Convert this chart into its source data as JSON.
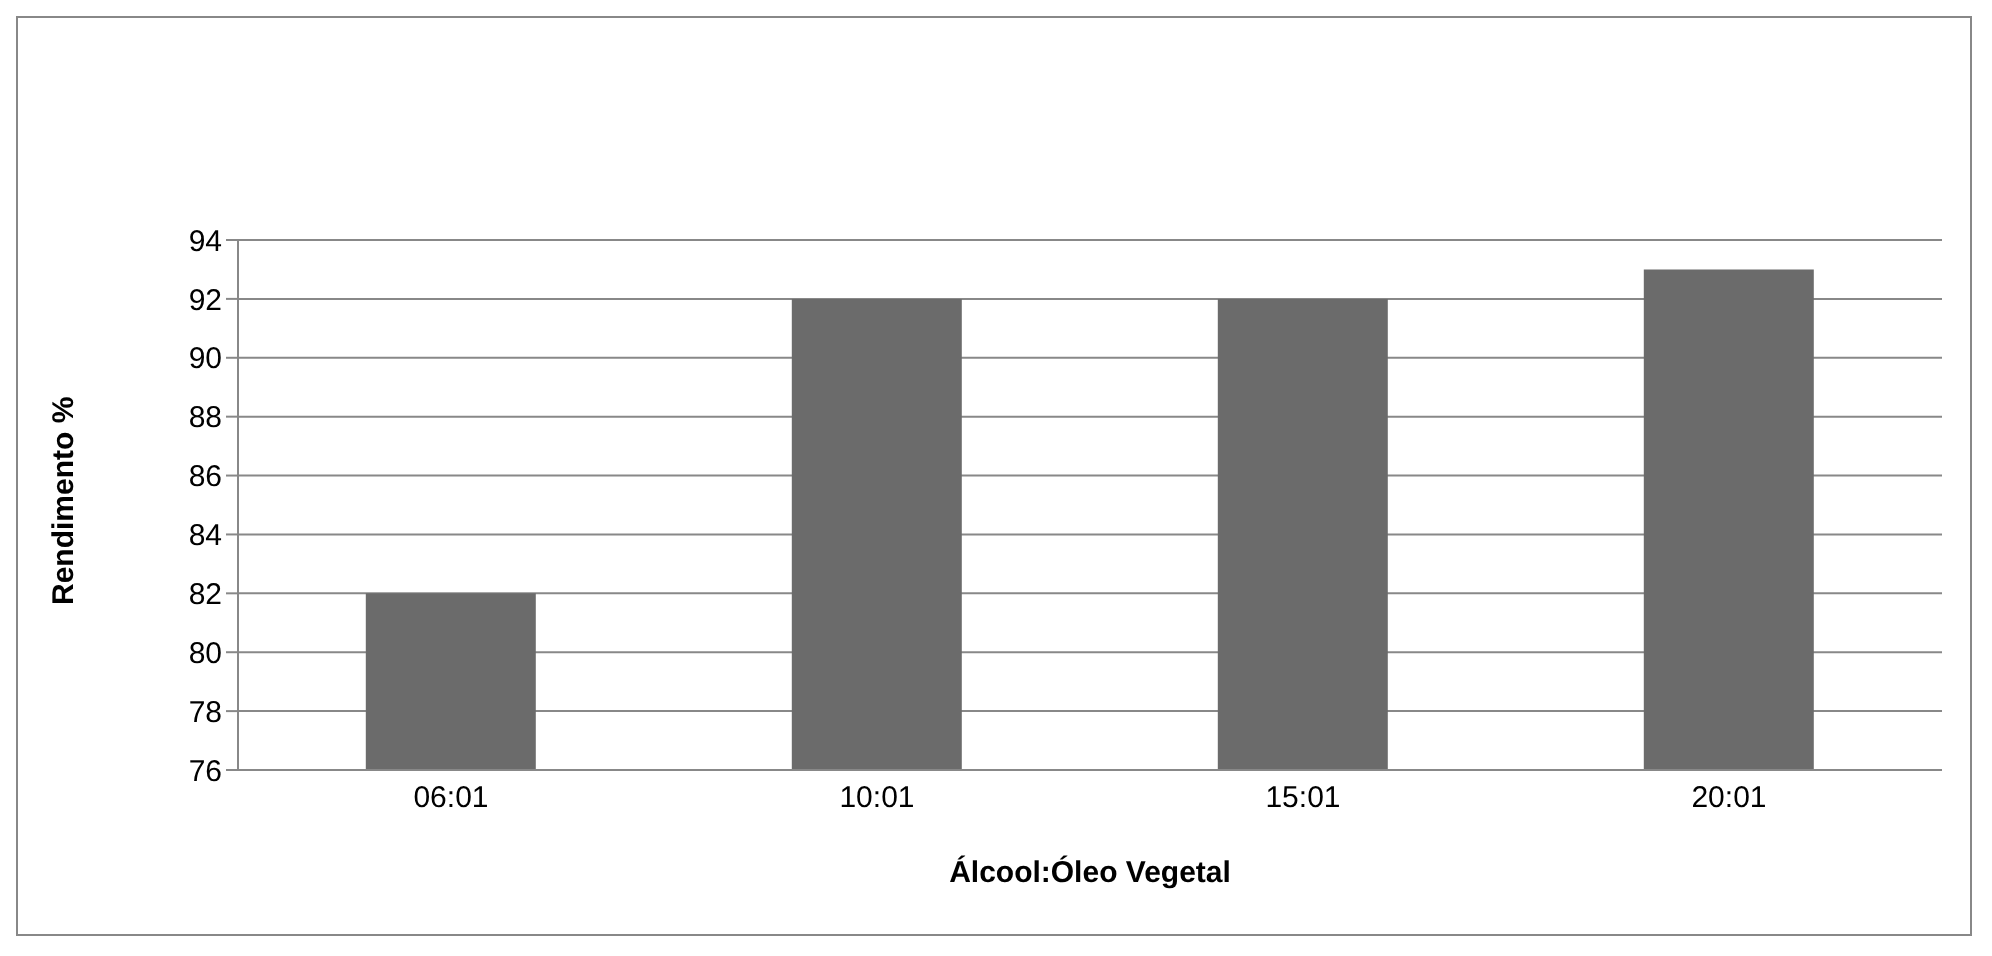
{
  "chart_data": {
    "type": "bar",
    "xlabel": "Álcool:Óleo Vegetal",
    "ylabel": "Rendimento %",
    "categories": [
      "06:01",
      "10:01",
      "15:01",
      "20:01"
    ],
    "values": [
      82,
      92,
      92,
      93
    ],
    "color": "#6b6b6b",
    "ylim": [
      76,
      94
    ],
    "yticks": [
      76,
      78,
      80,
      82,
      84,
      86,
      88,
      90,
      92,
      94
    ],
    "grid": "y"
  }
}
